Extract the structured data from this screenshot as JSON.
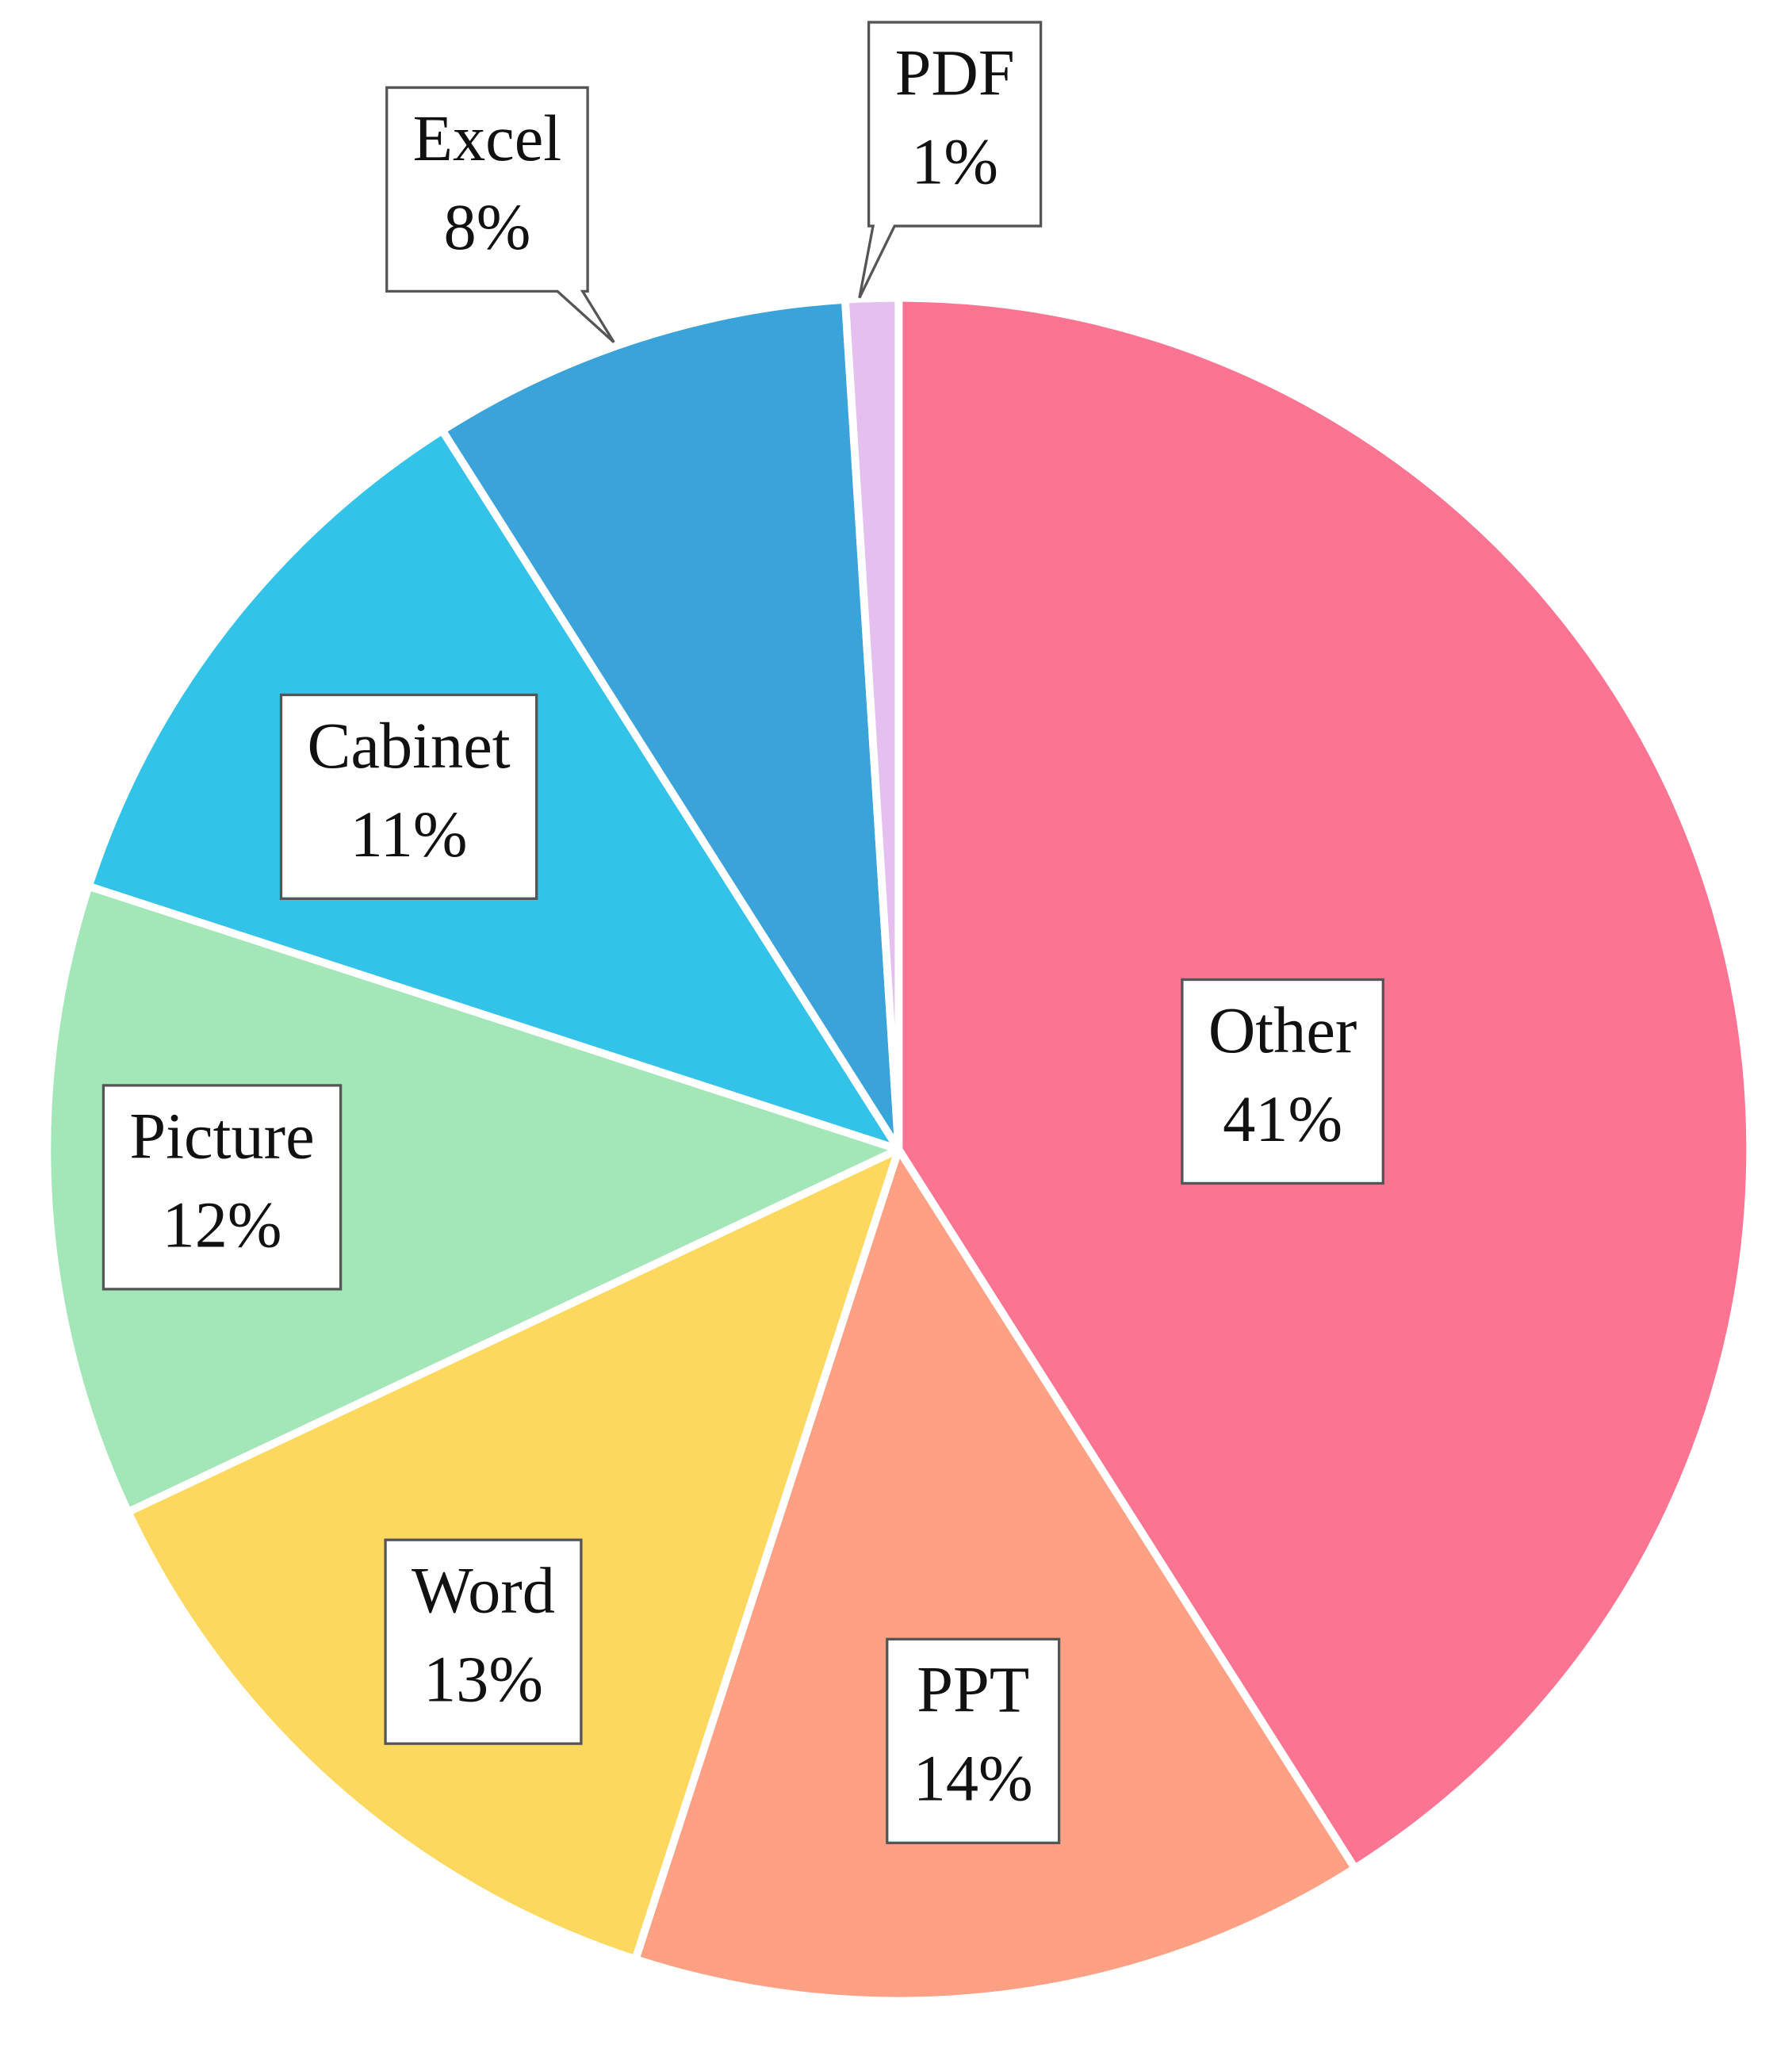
{
  "chart_data": {
    "type": "pie",
    "categories": [
      "Other",
      "PPT",
      "Word",
      "Picture",
      "Cabinet",
      "Excel",
      "PDF"
    ],
    "values": [
      41,
      14,
      13,
      12,
      11,
      8,
      1
    ],
    "value_labels": [
      "41%",
      "14%",
      "13%",
      "12%",
      "11%",
      "8%",
      "1%"
    ],
    "colors": [
      "#fb7593",
      "#fda083",
      "#fcd95e",
      "#a3e6b8",
      "#34c3e8",
      "#3aa3d9",
      "#e5bff0"
    ]
  }
}
